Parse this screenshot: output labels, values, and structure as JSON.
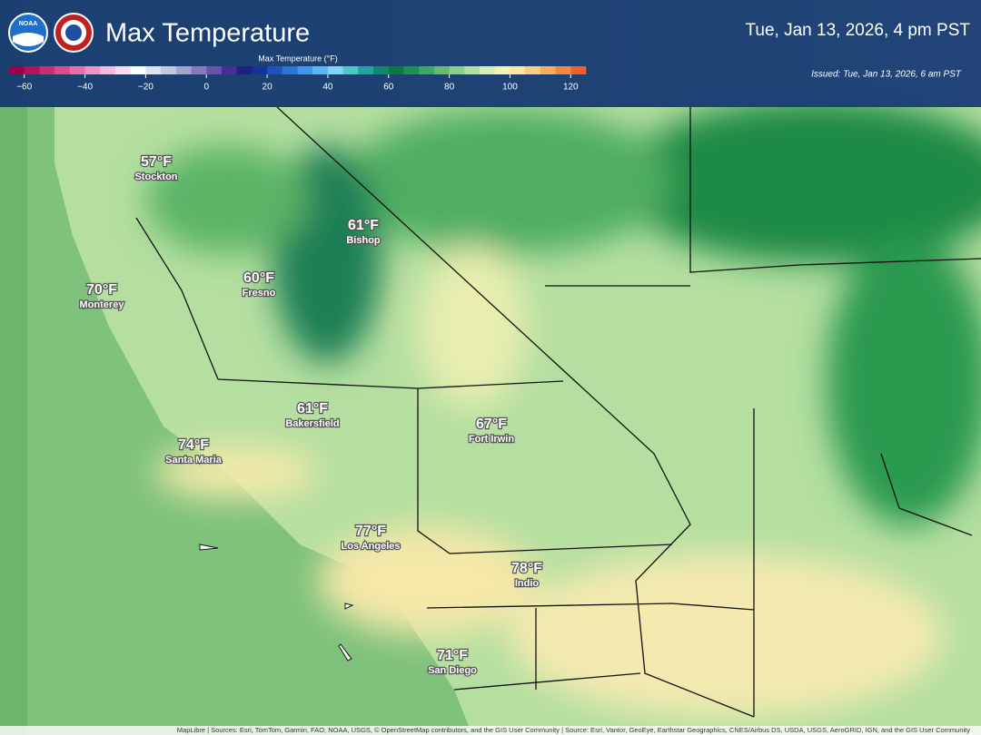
{
  "header": {
    "title": "Max Temperature",
    "valid_time": "Tue, Jan 13, 2026, 4 pm PST",
    "issued": "Issued: Tue, Jan 13, 2026, 6 am PST",
    "logo_left": "NOAA"
  },
  "legend": {
    "title": "Max Temperature (°F)",
    "range": [
      -65,
      125
    ],
    "colors": [
      "#9c0048",
      "#b8135a",
      "#d02a72",
      "#e04a8c",
      "#ea6ea8",
      "#f292c4",
      "#f8b8de",
      "#fbdcee",
      "#ffffff",
      "#e2e2ee",
      "#c8c6df",
      "#a9a2cf",
      "#8879bd",
      "#6a52ab",
      "#4a2b98",
      "#1f1f7d",
      "#16339a",
      "#1c54be",
      "#2877d8",
      "#3b98ea",
      "#58b8f4",
      "#7fd4f8",
      "#4cc8c4",
      "#1ea79f",
      "#0b8a6c",
      "#0a7a40",
      "#19944c",
      "#3ca95c",
      "#64bd6c",
      "#8ccf82",
      "#b2e09a",
      "#d6f0b2",
      "#f3f5b4",
      "#fde5a2",
      "#fbcd7e",
      "#f8ad5e",
      "#f4883e",
      "#ef602e"
    ],
    "ticks": [
      {
        "value": -60,
        "label": "−60"
      },
      {
        "value": -40,
        "label": "−40"
      },
      {
        "value": -20,
        "label": "−20"
      },
      0,
      20,
      40,
      60,
      80,
      100,
      120
    ]
  },
  "cities": [
    {
      "temp": "57°F",
      "name": "Stockton"
    },
    {
      "temp": "61°F",
      "name": "Bishop"
    },
    {
      "temp": "70°F",
      "name": "Monterey"
    },
    {
      "temp": "60°F",
      "name": "Fresno"
    },
    {
      "temp": "61°F",
      "name": "Bakersfield"
    },
    {
      "temp": "67°F",
      "name": "Fort Irwin"
    },
    {
      "temp": "74°F",
      "name": "Santa Maria"
    },
    {
      "temp": "77°F",
      "name": "Los Angeles"
    },
    {
      "temp": "78°F",
      "name": "Indio"
    },
    {
      "temp": "71°F",
      "name": "San Diego"
    }
  ],
  "attribution": "MapLibre | Sources: Esri, TomTom, Garmin, FAO, NOAA, USGS, © OpenStreetMap contributors, and the GIS User Community | Source: Esri, Vantor, GeoEye, Earthstar Geographics, CNES/Airbus DS, USDA, USGS, AeroGRID, IGN, and the GIS User Community"
}
